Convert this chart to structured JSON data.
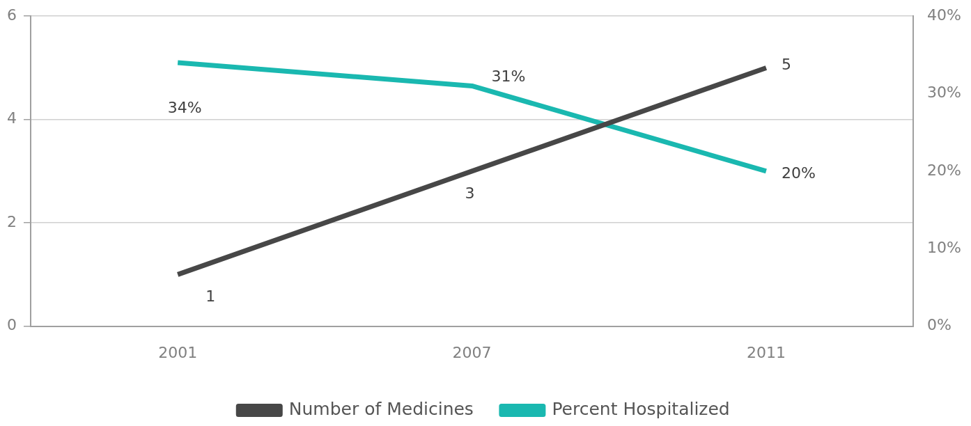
{
  "chart_data": {
    "type": "line",
    "categories": [
      "2001",
      "2007",
      "2011"
    ],
    "series": [
      {
        "name": "Number of Medicines",
        "color": "#474747",
        "values": [
          1,
          3,
          5
        ],
        "value_labels": [
          "1",
          "3",
          "5"
        ]
      },
      {
        "name": "Percent Hospitalized",
        "color": "#1ab8b0",
        "values": [
          34,
          31,
          20
        ],
        "axis": "y2",
        "value_labels": [
          "34%",
          "31%",
          "20%"
        ]
      }
    ],
    "ylim": [
      0,
      6
    ],
    "yticks": [
      0,
      2,
      4,
      6
    ],
    "y2lim": [
      0,
      40
    ],
    "y2ticks": [
      {
        "value": 0,
        "label": "0%"
      },
      {
        "value": 10,
        "label": "10%"
      },
      {
        "value": 20,
        "label": "20%"
      },
      {
        "value": 30,
        "label": "30%"
      },
      {
        "value": 40,
        "label": "40%"
      }
    ],
    "grid": "y",
    "legend": "bottom",
    "marker": "none",
    "line_style": "solid"
  }
}
